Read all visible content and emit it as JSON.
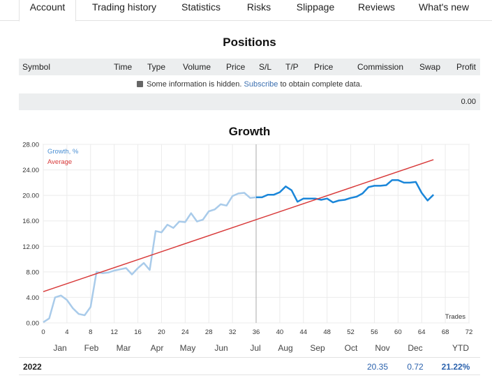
{
  "tabs": [
    {
      "label": "Account",
      "active": true
    },
    {
      "label": "Trading history"
    },
    {
      "label": "Statistics"
    },
    {
      "label": "Risks"
    },
    {
      "label": "Slippage"
    },
    {
      "label": "Reviews"
    },
    {
      "label": "What's new"
    }
  ],
  "positions": {
    "title": "Positions",
    "columns": [
      "Symbol",
      "Time",
      "Type",
      "Volume",
      "Price",
      "S/L",
      "T/P",
      "Price",
      "Commission",
      "Swap",
      "Profit"
    ],
    "notice_text_before": "Some information is hidden.",
    "notice_link": "Subscribe",
    "notice_text_after": "to obtain complete data.",
    "total_profit": "0.00"
  },
  "chart_data": {
    "type": "line",
    "title": "Growth",
    "xlabel": "Trades",
    "ylabel": "",
    "xlim": [
      0,
      72
    ],
    "ylim": [
      0,
      28
    ],
    "x_ticks": [
      "0",
      "4",
      "8",
      "12",
      "16",
      "20",
      "24",
      "28",
      "32",
      "36",
      "40",
      "44",
      "48",
      "52",
      "56",
      "60",
      "64",
      "68",
      "72"
    ],
    "y_ticks": [
      "0.00",
      "4.00",
      "8.00",
      "12.00",
      "16.00",
      "20.00",
      "24.00",
      "28.00"
    ],
    "grid": true,
    "legend_position": "top-left",
    "divider_x": 36,
    "series": [
      {
        "name": "Growth, %",
        "color": "#1a86d9",
        "x": [
          0,
          1,
          2,
          3,
          4,
          5,
          6,
          7,
          8,
          9,
          10,
          11,
          12,
          13,
          14,
          15,
          16,
          17,
          18,
          19,
          20,
          21,
          22,
          23,
          24,
          25,
          26,
          27,
          28,
          29,
          30,
          31,
          32,
          33,
          34,
          35,
          36,
          37,
          38,
          39,
          40,
          41,
          42,
          43,
          44,
          45,
          46,
          47,
          48,
          49,
          50,
          51,
          52,
          53,
          54,
          55,
          56,
          57,
          58,
          59,
          60,
          61,
          62,
          63,
          64,
          65,
          66
        ],
        "values": [
          0.1,
          0.7,
          4.0,
          4.3,
          3.6,
          2.3,
          1.4,
          1.2,
          2.5,
          8.0,
          7.8,
          7.9,
          8.2,
          8.4,
          8.6,
          7.6,
          8.6,
          9.4,
          8.3,
          14.4,
          14.2,
          15.4,
          14.9,
          15.9,
          15.8,
          17.2,
          15.9,
          16.2,
          17.5,
          17.8,
          18.6,
          18.4,
          19.9,
          20.3,
          20.4,
          19.6,
          19.7,
          19.7,
          20.1,
          20.1,
          20.5,
          21.4,
          20.8,
          19.0,
          19.5,
          19.5,
          19.5,
          19.3,
          19.5,
          18.9,
          19.2,
          19.3,
          19.6,
          19.8,
          20.3,
          21.3,
          21.5,
          21.5,
          21.6,
          22.4,
          22.4,
          22.0,
          22.0,
          22.1,
          20.4,
          19.2,
          20.1
        ]
      },
      {
        "name": "Average",
        "color": "#d83a3a",
        "x": [
          0,
          66
        ],
        "values": [
          4.9,
          25.6
        ]
      }
    ]
  },
  "months": [
    "Jan",
    "Feb",
    "Mar",
    "Apr",
    "May",
    "Jun",
    "Jul",
    "Aug",
    "Sep",
    "Oct",
    "Nov",
    "Dec",
    "YTD"
  ],
  "year_row": {
    "year": "2022",
    "nov": "20.35",
    "dec": "0.72",
    "ytd": "21.22%"
  }
}
